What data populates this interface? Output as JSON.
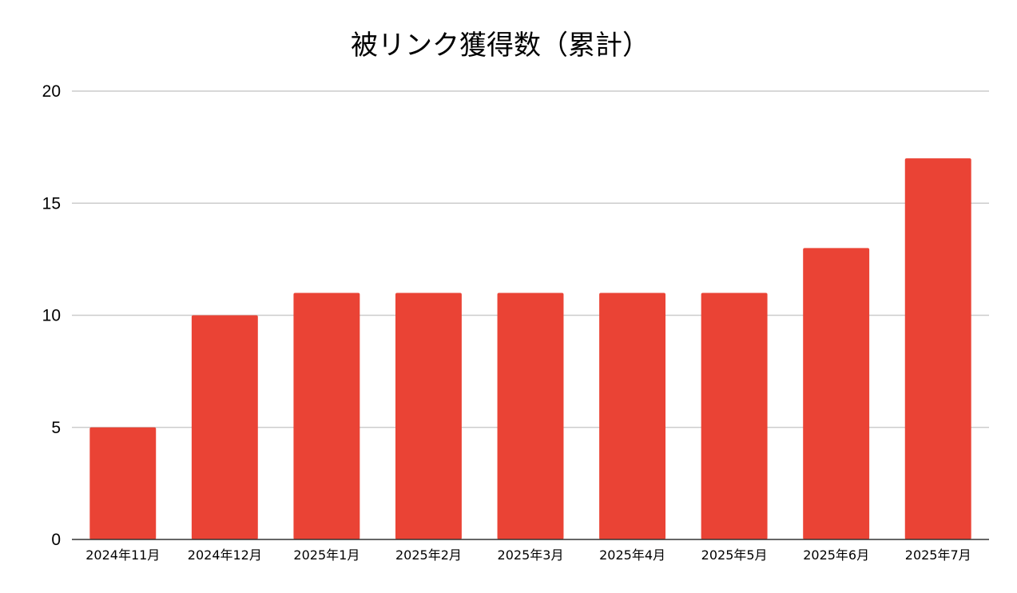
{
  "chart_data": {
    "type": "bar",
    "title": "被リンク獲得数（累計）",
    "xlabel": "",
    "ylabel": "",
    "categories": [
      "2024年11月",
      "2024年12月",
      "2025年1月",
      "2025年2月",
      "2025年3月",
      "2025年4月",
      "2025年5月",
      "2025年6月",
      "2025年7月"
    ],
    "values": [
      5,
      10,
      11,
      11,
      11,
      11,
      11,
      13,
      17
    ],
    "ylim": [
      0,
      20
    ],
    "yticks": [
      0,
      5,
      10,
      15,
      20
    ],
    "grid": true,
    "legend": "none",
    "bar_color": "#ea4335"
  }
}
